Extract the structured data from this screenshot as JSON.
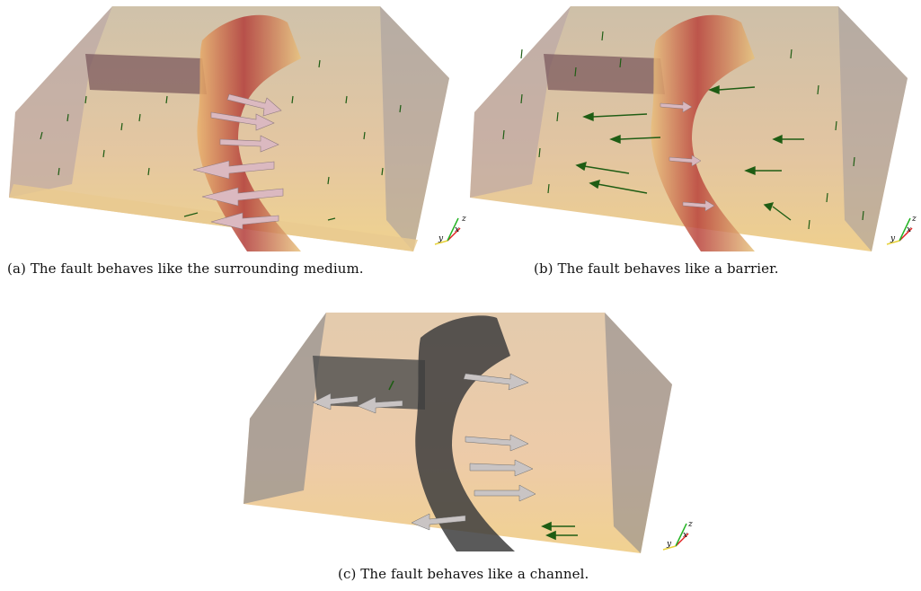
{
  "figure": {
    "panels": [
      {
        "id": "a",
        "caption": "(a) The fault behaves like the surrounding medium.",
        "fault_behavior": "surrounding-medium"
      },
      {
        "id": "b",
        "caption": "(b) The fault behaves like a barrier.",
        "fault_behavior": "barrier"
      },
      {
        "id": "c",
        "caption": "(c) The fault behaves like a channel.",
        "fault_behavior": "channel"
      }
    ],
    "axes_triad": {
      "x": "x",
      "y": "y",
      "z": "z"
    },
    "colors": {
      "block_side": "#a89ea3",
      "block_top_warm": "#e9c79a",
      "fault_red": "#b8403a",
      "fault_yellow": "#efd27a",
      "small_arrow_green": "#1f5d14",
      "large_arrow_pink": "#d8b4bb",
      "channel_dark": "#4a4a4a",
      "axis_x": "#e02020",
      "axis_y": "#e7d23a",
      "axis_z": "#22b322"
    }
  }
}
